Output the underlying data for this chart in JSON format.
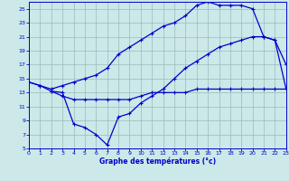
{
  "xlabel": "Graphe des températures (°c)",
  "bg_color": "#cce8e8",
  "line_color": "#0000cc",
  "grid_color": "#99bbbb",
  "xmin": 0,
  "xmax": 23,
  "ymin": 5,
  "ymax": 26,
  "yticks": [
    5,
    7,
    9,
    11,
    13,
    15,
    17,
    19,
    21,
    23,
    25
  ],
  "xticks": [
    0,
    1,
    2,
    3,
    4,
    5,
    6,
    7,
    8,
    9,
    10,
    11,
    12,
    13,
    14,
    15,
    16,
    17,
    18,
    19,
    20,
    21,
    22,
    23
  ],
  "curve1_x": [
    0,
    1,
    2,
    3,
    4,
    5,
    6,
    7,
    8,
    9,
    10,
    11,
    12,
    13,
    14,
    15,
    16,
    17,
    18,
    19,
    20,
    21,
    22,
    23
  ],
  "curve1_y": [
    14.5,
    14.0,
    13.2,
    13.0,
    8.5,
    8.0,
    7.0,
    5.5,
    9.5,
    10.0,
    11.5,
    12.5,
    13.5,
    15.0,
    16.5,
    17.5,
    18.5,
    19.5,
    20.0,
    20.5,
    21.0,
    21.0,
    20.5,
    17.0
  ],
  "curve2_x": [
    0,
    1,
    2,
    3,
    4,
    5,
    6,
    7,
    8,
    9,
    10,
    11,
    12,
    13,
    14,
    15,
    16,
    17,
    18,
    19,
    20,
    21,
    22,
    23
  ],
  "curve2_y": [
    14.5,
    14.0,
    13.5,
    14.0,
    14.5,
    15.0,
    15.5,
    16.5,
    18.5,
    19.5,
    20.5,
    21.5,
    22.5,
    23.0,
    24.0,
    25.5,
    26.0,
    25.5,
    25.5,
    25.5,
    25.0,
    21.0,
    20.5,
    13.5
  ],
  "curve3_x": [
    2,
    3,
    4,
    5,
    6,
    7,
    8,
    9,
    10,
    11,
    12,
    13,
    14,
    15,
    16,
    17,
    18,
    19,
    20,
    21,
    22,
    23
  ],
  "curve3_y": [
    13.2,
    12.5,
    12.0,
    12.0,
    12.0,
    12.0,
    12.0,
    12.0,
    12.5,
    13.0,
    13.0,
    13.0,
    13.0,
    13.5,
    13.5,
    13.5,
    13.5,
    13.5,
    13.5,
    13.5,
    13.5,
    13.5
  ]
}
